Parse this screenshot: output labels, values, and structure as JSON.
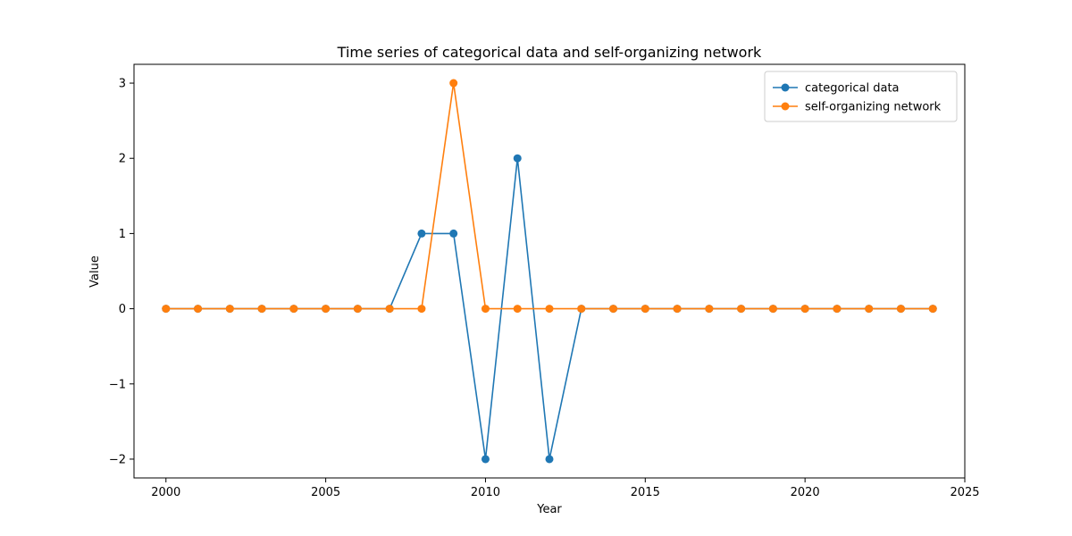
{
  "chart_data": {
    "type": "line",
    "title": "Time series of categorical data and self-organizing network",
    "xlabel": "Year",
    "ylabel": "Value",
    "xlim": [
      1999,
      2025
    ],
    "ylim": [
      -2.25,
      3.25
    ],
    "x_ticks": [
      2000,
      2005,
      2010,
      2015,
      2020,
      2025
    ],
    "y_ticks": [
      -2,
      -1,
      0,
      1,
      2,
      3
    ],
    "y_tick_labels": [
      "−2",
      "−1",
      "0",
      "1",
      "2",
      "3"
    ],
    "grid": false,
    "legend_position": "top-right",
    "x": [
      2000,
      2001,
      2002,
      2003,
      2004,
      2005,
      2006,
      2007,
      2008,
      2009,
      2010,
      2011,
      2012,
      2013,
      2014,
      2015,
      2016,
      2017,
      2018,
      2019,
      2020,
      2021,
      2022,
      2023,
      2024
    ],
    "series": [
      {
        "name": "categorical data",
        "color": "#1f77b4",
        "values": [
          0,
          0,
          0,
          0,
          0,
          0,
          0,
          0,
          1,
          1,
          -2,
          2,
          -2,
          0,
          0,
          0,
          0,
          0,
          0,
          0,
          0,
          0,
          0,
          0,
          0
        ]
      },
      {
        "name": "self-organizing network",
        "color": "#ff7f0e",
        "values": [
          0,
          0,
          0,
          0,
          0,
          0,
          0,
          0,
          0,
          3,
          0,
          0,
          0,
          0,
          0,
          0,
          0,
          0,
          0,
          0,
          0,
          0,
          0,
          0,
          0
        ]
      }
    ]
  }
}
